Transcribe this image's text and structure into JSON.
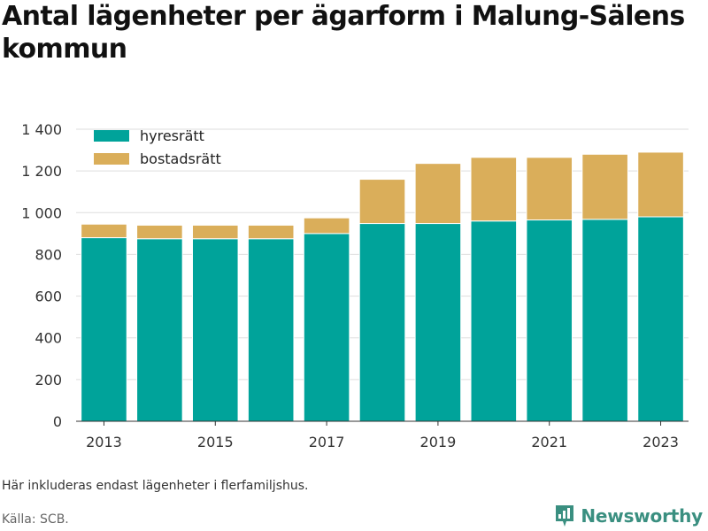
{
  "title": "Antal lägenheter per ägarform i Malung-Sälens kommun",
  "note": "Här inkluderas endast lägenheter i flerfamiljshus.",
  "source": "Källa: SCB.",
  "brand": {
    "name": "Newsworthy",
    "icon": "newsworthy-logo-icon"
  },
  "colors": {
    "hyresratt": "#00A39A",
    "bostadsratt": "#DAAE5A",
    "grid": "#dddddd",
    "axis": "#333333"
  },
  "chart_data": {
    "type": "bar",
    "stacked": true,
    "categories": [
      "2013",
      "2014",
      "2015",
      "2016",
      "2017",
      "2018",
      "2019",
      "2020",
      "2021",
      "2022",
      "2023"
    ],
    "x_tick_labels": [
      "2013",
      "2015",
      "2017",
      "2019",
      "2021",
      "2023"
    ],
    "series": [
      {
        "name": "hyresrätt",
        "color": "#00A39A",
        "values": [
          880,
          875,
          875,
          875,
          900,
          948,
          948,
          960,
          965,
          968,
          980
        ]
      },
      {
        "name": "bostadsrätt",
        "color": "#DAAE5A",
        "values": [
          65,
          65,
          65,
          65,
          75,
          212,
          288,
          305,
          300,
          312,
          310
        ]
      }
    ],
    "ylim": [
      0,
      1400
    ],
    "yticks": [
      0,
      200,
      400,
      600,
      800,
      1000,
      1200,
      1400
    ],
    "ytick_labels": [
      "0",
      "200",
      "400",
      "600",
      "800",
      "1 000",
      "1 200",
      "1 400"
    ],
    "grid": true,
    "legend_position": "top-left",
    "xlabel": "",
    "ylabel": ""
  }
}
